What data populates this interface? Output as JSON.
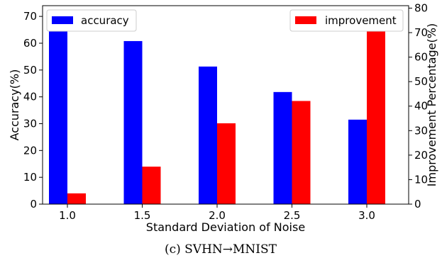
{
  "chart_data": {
    "type": "bar",
    "categories": [
      "1.0",
      "1.5",
      "2.0",
      "2.5",
      "3.0"
    ],
    "series": [
      {
        "name": "accuracy",
        "axis": "left",
        "color": "#0000ff",
        "values": [
          71.5,
          60.8,
          51.3,
          41.8,
          31.5
        ]
      },
      {
        "name": "improvement",
        "axis": "right",
        "color": "#ff0000",
        "values": [
          4.4,
          15.3,
          33.0,
          42.1,
          78.4
        ]
      }
    ],
    "xlabel": "Standard Deviation of Noise",
    "ylabel": "Accuracy(%)",
    "y2label": "Improvement Percentage(%)",
    "ylim": [
      0,
      74
    ],
    "y2lim": [
      0,
      81
    ],
    "yticks": [
      "0",
      "10",
      "20",
      "30",
      "40",
      "50",
      "60",
      "70"
    ],
    "y2ticks": [
      "0",
      "10",
      "20",
      "30",
      "40",
      "50",
      "60",
      "70",
      "80"
    ],
    "legend_left": "top-left",
    "legend_right": "top-right",
    "grid": false
  },
  "caption": "(c) SVHN→MNIST"
}
